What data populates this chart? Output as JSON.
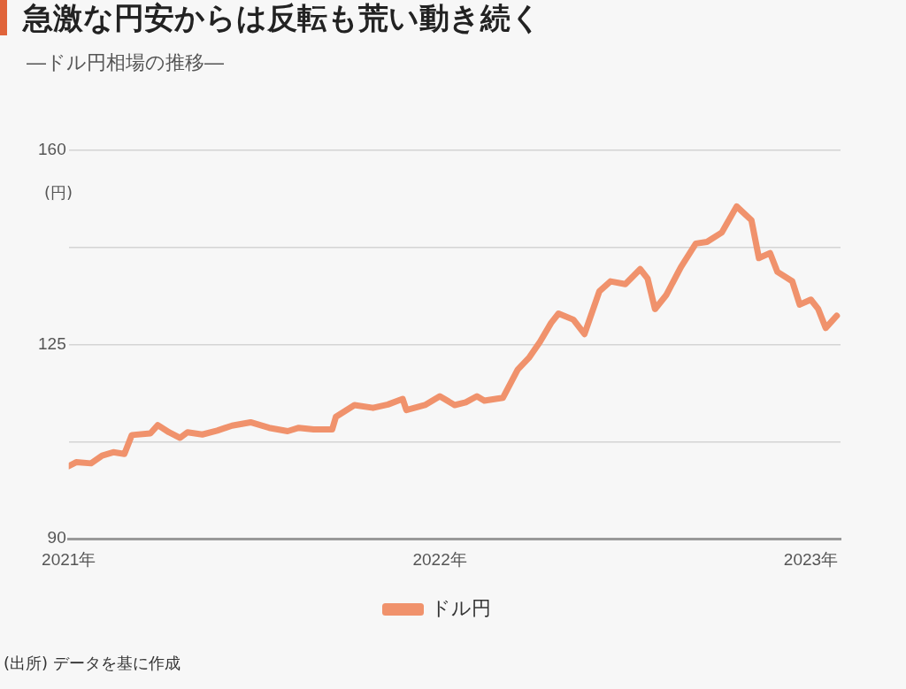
{
  "chart_data": {
    "type": "line",
    "title": "急激な円安からは反転も荒い動き続く",
    "subtitle": "―ドル円相場の推移―",
    "ylabel": "(円)",
    "annotations": [
      "(出所) データを基に作成"
    ],
    "xlim": [
      2021,
      2023.08
    ],
    "xticks": [
      {
        "value": 2021,
        "label": "2021年"
      },
      {
        "value": 2022,
        "label": "2022年"
      },
      {
        "value": 2023,
        "label": "2023年"
      }
    ],
    "ylim": [
      90,
      160
    ],
    "yticks": [
      90,
      {
        "value": 107.5,
        "label": null
      },
      125,
      {
        "value": 142.5,
        "label": null
      },
      160
    ],
    "grid": "y",
    "legend": "bottom",
    "marker": "none",
    "line_style": "solid",
    "series": [
      {
        "name": "ドル円",
        "color": "#f0926c",
        "x": [
          2021.0,
          2021.02,
          2021.06,
          2021.09,
          2021.12,
          2021.15,
          2021.17,
          2021.22,
          2021.24,
          2021.27,
          2021.3,
          2021.32,
          2021.36,
          2021.4,
          2021.44,
          2021.49,
          2021.54,
          2021.59,
          2021.62,
          2021.66,
          2021.71,
          2021.72,
          2021.77,
          2021.82,
          2021.86,
          2021.9,
          2021.91,
          2021.96,
          2022.0,
          2022.04,
          2022.07,
          2022.1,
          2022.12,
          2022.17,
          2022.21,
          2022.24,
          2022.27,
          2022.3,
          2022.32,
          2022.36,
          2022.39,
          2022.43,
          2022.46,
          2022.5,
          2022.54,
          2022.56,
          2022.58,
          2022.61,
          2022.65,
          2022.69,
          2022.72,
          2022.76,
          2022.8,
          2022.84,
          2022.86,
          2022.89,
          2022.91,
          2022.95,
          2022.97,
          2023.0,
          2023.02,
          2023.04,
          2023.07
        ],
        "values": [
          103.1,
          103.8,
          103.6,
          105.0,
          105.6,
          105.3,
          108.7,
          109.0,
          110.5,
          109.2,
          108.2,
          109.2,
          108.8,
          109.5,
          110.4,
          111.0,
          110.0,
          109.4,
          110.0,
          109.7,
          109.7,
          112.0,
          114.1,
          113.6,
          114.2,
          115.2,
          113.2,
          114.1,
          115.7,
          114.1,
          114.6,
          115.7,
          114.9,
          115.4,
          120.5,
          122.6,
          125.5,
          128.9,
          130.6,
          129.5,
          126.9,
          134.6,
          136.4,
          135.9,
          138.6,
          136.9,
          131.4,
          133.9,
          139.0,
          143.2,
          143.5,
          145.2,
          149.9,
          147.4,
          140.6,
          141.5,
          138.1,
          136.4,
          132.2,
          133.1,
          131.4,
          128.0,
          130.2
        ]
      }
    ]
  }
}
